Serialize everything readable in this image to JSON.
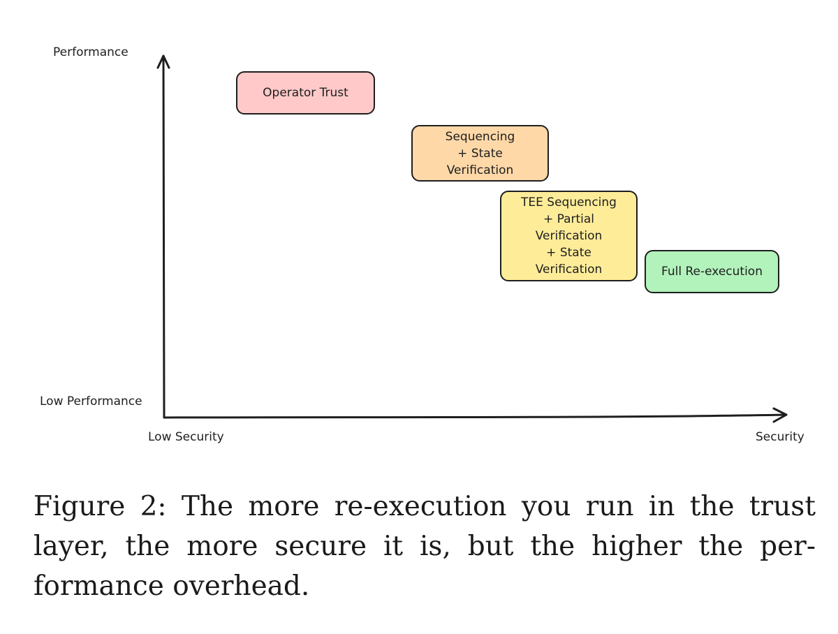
{
  "axes": {
    "y_top_label": "Performance",
    "y_bottom_label": "Low Performance",
    "x_left_label": "Low Security",
    "x_right_label": "Security"
  },
  "boxes": {
    "operator_trust": "Operator Trust",
    "sequencing_state": "Sequencing\n+ State\nVerification",
    "tee_sequencing": "TEE Sequencing\n+ Partial\nVerification\n+ State\nVerification",
    "full_reexecution": "Full Re-execution"
  },
  "colors": {
    "operator_trust": "#ffc9c9",
    "sequencing_state": "#ffd8a8",
    "tee_sequencing": "#ffec99",
    "full_reexecution": "#b2f2bb"
  },
  "caption": "Figure 2: The more re-execution you run in the trust layer, the more secure it is, but the higher the per-formance overhead."
}
